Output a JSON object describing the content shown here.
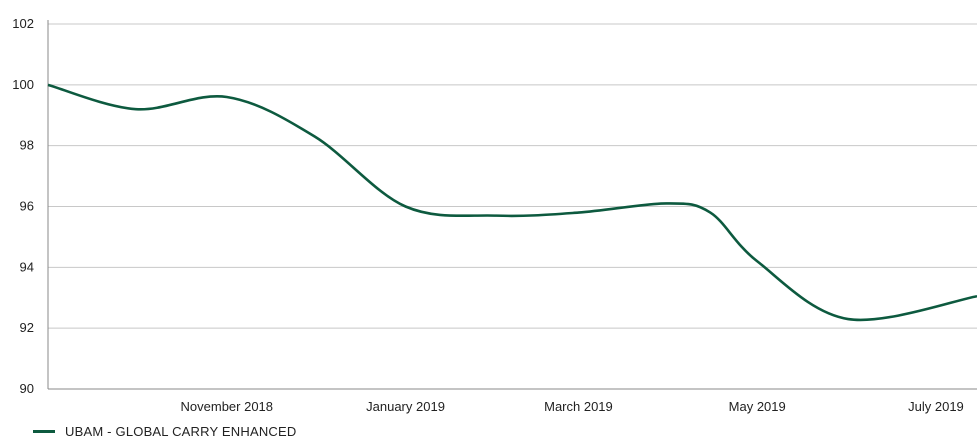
{
  "chart_data": {
    "type": "line",
    "title": "",
    "xlabel": "",
    "ylabel": "",
    "ylim": [
      90,
      102
    ],
    "yticks": [
      "90",
      "92",
      "94",
      "96",
      "98",
      "100",
      "102"
    ],
    "xticks": [
      {
        "label": "November 2018",
        "x": "2018-11-01"
      },
      {
        "label": "January 2019",
        "x": "2019-01-01"
      },
      {
        "label": "March 2019",
        "x": "2019-03-01"
      },
      {
        "label": "May 2019",
        "x": "2019-05-01"
      },
      {
        "label": "July 2019",
        "x": "2019-07-01"
      }
    ],
    "xlim": [
      "2018-09-01",
      "2019-07-15"
    ],
    "grid": "horizontal",
    "legend_position": "bottom-left",
    "series": [
      {
        "name": "UBAM - GLOBAL CARRY ENHANCED",
        "color": "#0d5a3f",
        "x": [
          "2018-09-01",
          "2018-10-01",
          "2018-11-01",
          "2018-12-01",
          "2019-01-01",
          "2019-02-01",
          "2019-03-01",
          "2019-03-31",
          "2019-04-15",
          "2019-05-01",
          "2019-06-01",
          "2019-07-15"
        ],
        "values": [
          100.0,
          99.2,
          99.6,
          98.3,
          96.0,
          95.7,
          95.8,
          96.1,
          95.8,
          94.2,
          92.3,
          93.05
        ]
      }
    ]
  },
  "legend": {
    "label": "UBAM - GLOBAL CARRY ENHANCED",
    "color": "#0d5a3f"
  }
}
